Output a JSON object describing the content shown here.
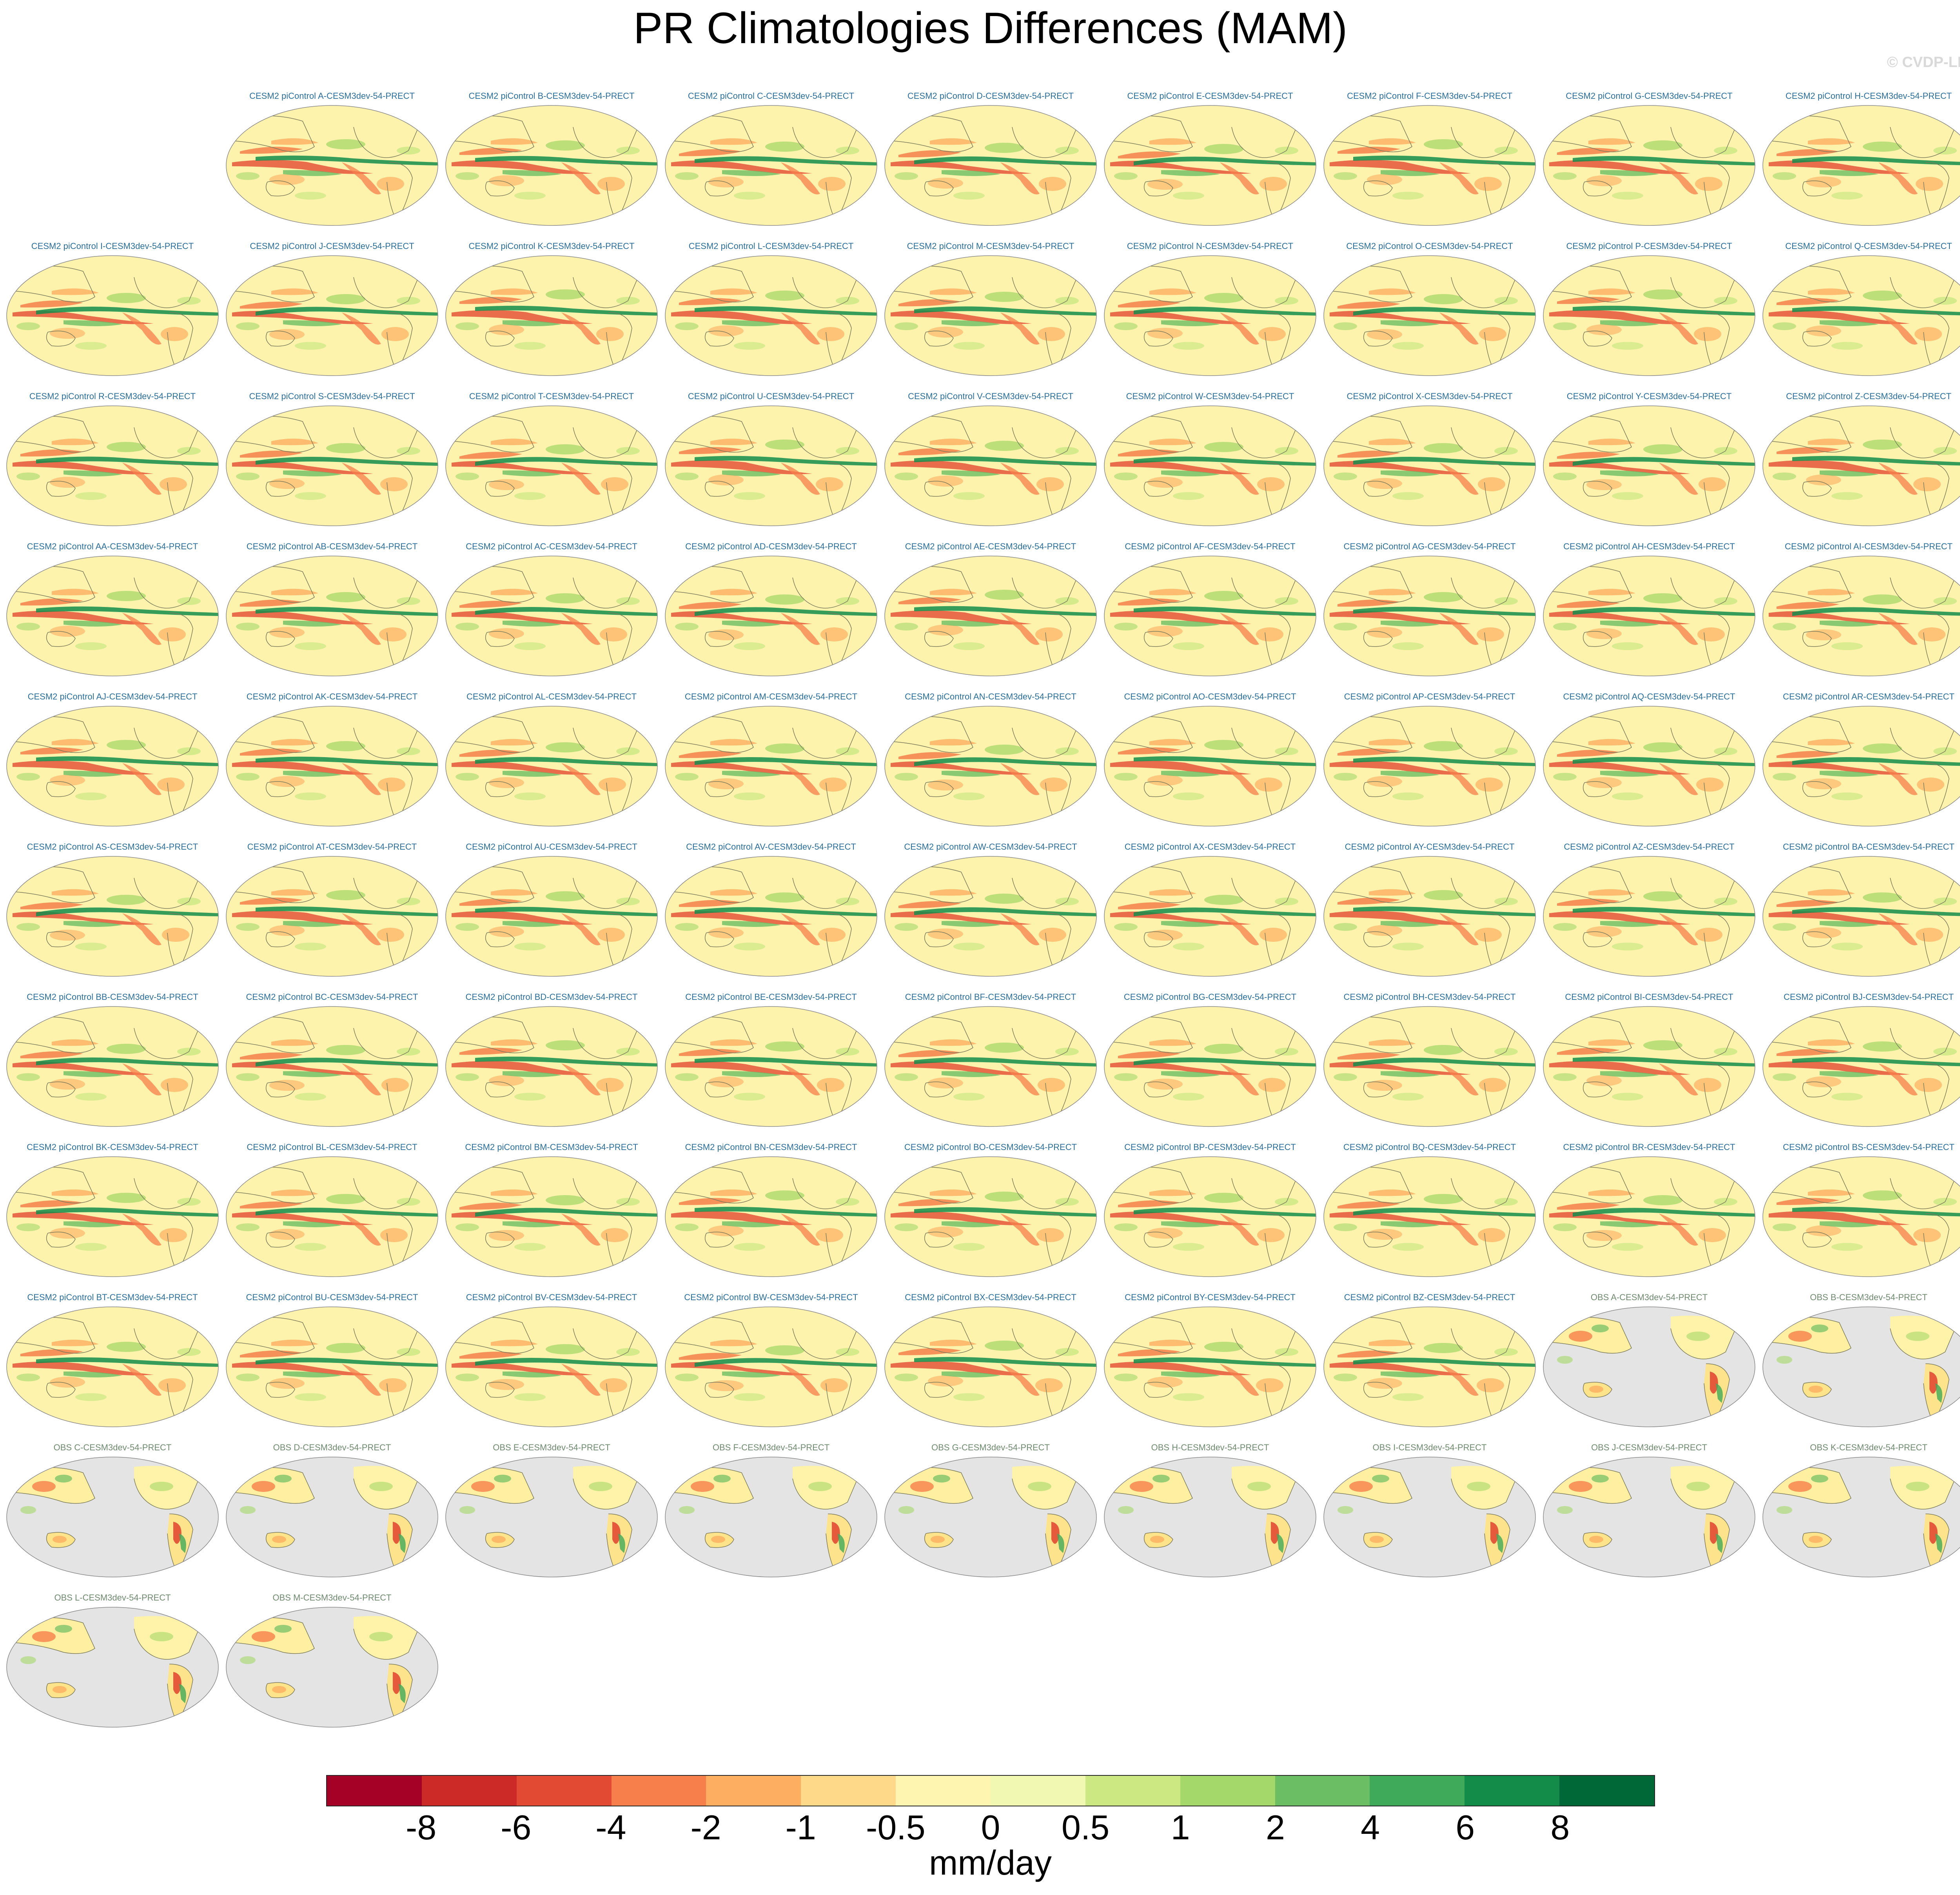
{
  "title": "PR Climatologies Differences (MAM)",
  "watermark": "© CVDP-LE",
  "colors": {
    "model_title": "#2a6f9b",
    "obs_title": "#6e8a6e",
    "ocean_obs": "#e4e4e4",
    "coast": "#7a7a5a"
  },
  "panels": [
    {
      "label": "CESM2 piControl A-CESM3dev-54-PRECT",
      "kind": "model"
    },
    {
      "label": "CESM2 piControl B-CESM3dev-54-PRECT",
      "kind": "model"
    },
    {
      "label": "CESM2 piControl C-CESM3dev-54-PRECT",
      "kind": "model"
    },
    {
      "label": "CESM2 piControl D-CESM3dev-54-PRECT",
      "kind": "model"
    },
    {
      "label": "CESM2 piControl E-CESM3dev-54-PRECT",
      "kind": "model"
    },
    {
      "label": "CESM2 piControl F-CESM3dev-54-PRECT",
      "kind": "model"
    },
    {
      "label": "CESM2 piControl G-CESM3dev-54-PRECT",
      "kind": "model"
    },
    {
      "label": "CESM2 piControl H-CESM3dev-54-PRECT",
      "kind": "model"
    },
    {
      "label": "CESM2 piControl I-CESM3dev-54-PRECT",
      "kind": "model"
    },
    {
      "label": "CESM2 piControl J-CESM3dev-54-PRECT",
      "kind": "model"
    },
    {
      "label": "CESM2 piControl K-CESM3dev-54-PRECT",
      "kind": "model"
    },
    {
      "label": "CESM2 piControl L-CESM3dev-54-PRECT",
      "kind": "model"
    },
    {
      "label": "CESM2 piControl M-CESM3dev-54-PRECT",
      "kind": "model"
    },
    {
      "label": "CESM2 piControl N-CESM3dev-54-PRECT",
      "kind": "model"
    },
    {
      "label": "CESM2 piControl O-CESM3dev-54-PRECT",
      "kind": "model"
    },
    {
      "label": "CESM2 piControl P-CESM3dev-54-PRECT",
      "kind": "model"
    },
    {
      "label": "CESM2 piControl Q-CESM3dev-54-PRECT",
      "kind": "model"
    },
    {
      "label": "CESM2 piControl R-CESM3dev-54-PRECT",
      "kind": "model"
    },
    {
      "label": "CESM2 piControl S-CESM3dev-54-PRECT",
      "kind": "model"
    },
    {
      "label": "CESM2 piControl T-CESM3dev-54-PRECT",
      "kind": "model"
    },
    {
      "label": "CESM2 piControl U-CESM3dev-54-PRECT",
      "kind": "model"
    },
    {
      "label": "CESM2 piControl V-CESM3dev-54-PRECT",
      "kind": "model"
    },
    {
      "label": "CESM2 piControl W-CESM3dev-54-PRECT",
      "kind": "model"
    },
    {
      "label": "CESM2 piControl X-CESM3dev-54-PRECT",
      "kind": "model"
    },
    {
      "label": "CESM2 piControl Y-CESM3dev-54-PRECT",
      "kind": "model"
    },
    {
      "label": "CESM2 piControl Z-CESM3dev-54-PRECT",
      "kind": "model"
    },
    {
      "label": "CESM2 piControl AA-CESM3dev-54-PRECT",
      "kind": "model"
    },
    {
      "label": "CESM2 piControl AB-CESM3dev-54-PRECT",
      "kind": "model"
    },
    {
      "label": "CESM2 piControl AC-CESM3dev-54-PRECT",
      "kind": "model"
    },
    {
      "label": "CESM2 piControl AD-CESM3dev-54-PRECT",
      "kind": "model"
    },
    {
      "label": "CESM2 piControl AE-CESM3dev-54-PRECT",
      "kind": "model"
    },
    {
      "label": "CESM2 piControl AF-CESM3dev-54-PRECT",
      "kind": "model"
    },
    {
      "label": "CESM2 piControl AG-CESM3dev-54-PRECT",
      "kind": "model"
    },
    {
      "label": "CESM2 piControl AH-CESM3dev-54-PRECT",
      "kind": "model"
    },
    {
      "label": "CESM2 piControl AI-CESM3dev-54-PRECT",
      "kind": "model"
    },
    {
      "label": "CESM2 piControl AJ-CESM3dev-54-PRECT",
      "kind": "model"
    },
    {
      "label": "CESM2 piControl AK-CESM3dev-54-PRECT",
      "kind": "model"
    },
    {
      "label": "CESM2 piControl AL-CESM3dev-54-PRECT",
      "kind": "model"
    },
    {
      "label": "CESM2 piControl AM-CESM3dev-54-PRECT",
      "kind": "model"
    },
    {
      "label": "CESM2 piControl AN-CESM3dev-54-PRECT",
      "kind": "model"
    },
    {
      "label": "CESM2 piControl AO-CESM3dev-54-PRECT",
      "kind": "model"
    },
    {
      "label": "CESM2 piControl AP-CESM3dev-54-PRECT",
      "kind": "model"
    },
    {
      "label": "CESM2 piControl AQ-CESM3dev-54-PRECT",
      "kind": "model"
    },
    {
      "label": "CESM2 piControl AR-CESM3dev-54-PRECT",
      "kind": "model"
    },
    {
      "label": "CESM2 piControl AS-CESM3dev-54-PRECT",
      "kind": "model"
    },
    {
      "label": "CESM2 piControl AT-CESM3dev-54-PRECT",
      "kind": "model"
    },
    {
      "label": "CESM2 piControl AU-CESM3dev-54-PRECT",
      "kind": "model"
    },
    {
      "label": "CESM2 piControl AV-CESM3dev-54-PRECT",
      "kind": "model"
    },
    {
      "label": "CESM2 piControl AW-CESM3dev-54-PRECT",
      "kind": "model"
    },
    {
      "label": "CESM2 piControl AX-CESM3dev-54-PRECT",
      "kind": "model"
    },
    {
      "label": "CESM2 piControl AY-CESM3dev-54-PRECT",
      "kind": "model"
    },
    {
      "label": "CESM2 piControl AZ-CESM3dev-54-PRECT",
      "kind": "model"
    },
    {
      "label": "CESM2 piControl BA-CESM3dev-54-PRECT",
      "kind": "model"
    },
    {
      "label": "CESM2 piControl BB-CESM3dev-54-PRECT",
      "kind": "model"
    },
    {
      "label": "CESM2 piControl BC-CESM3dev-54-PRECT",
      "kind": "model"
    },
    {
      "label": "CESM2 piControl BD-CESM3dev-54-PRECT",
      "kind": "model"
    },
    {
      "label": "CESM2 piControl BE-CESM3dev-54-PRECT",
      "kind": "model"
    },
    {
      "label": "CESM2 piControl BF-CESM3dev-54-PRECT",
      "kind": "model"
    },
    {
      "label": "CESM2 piControl BG-CESM3dev-54-PRECT",
      "kind": "model"
    },
    {
      "label": "CESM2 piControl BH-CESM3dev-54-PRECT",
      "kind": "model"
    },
    {
      "label": "CESM2 piControl BI-CESM3dev-54-PRECT",
      "kind": "model"
    },
    {
      "label": "CESM2 piControl BJ-CESM3dev-54-PRECT",
      "kind": "model"
    },
    {
      "label": "CESM2 piControl BK-CESM3dev-54-PRECT",
      "kind": "model"
    },
    {
      "label": "CESM2 piControl BL-CESM3dev-54-PRECT",
      "kind": "model"
    },
    {
      "label": "CESM2 piControl BM-CESM3dev-54-PRECT",
      "kind": "model"
    },
    {
      "label": "CESM2 piControl BN-CESM3dev-54-PRECT",
      "kind": "model"
    },
    {
      "label": "CESM2 piControl BO-CESM3dev-54-PRECT",
      "kind": "model"
    },
    {
      "label": "CESM2 piControl BP-CESM3dev-54-PRECT",
      "kind": "model"
    },
    {
      "label": "CESM2 piControl BQ-CESM3dev-54-PRECT",
      "kind": "model"
    },
    {
      "label": "CESM2 piControl BR-CESM3dev-54-PRECT",
      "kind": "model"
    },
    {
      "label": "CESM2 piControl BS-CESM3dev-54-PRECT",
      "kind": "model"
    },
    {
      "label": "CESM2 piControl BT-CESM3dev-54-PRECT",
      "kind": "model"
    },
    {
      "label": "CESM2 piControl BU-CESM3dev-54-PRECT",
      "kind": "model"
    },
    {
      "label": "CESM2 piControl BV-CESM3dev-54-PRECT",
      "kind": "model"
    },
    {
      "label": "CESM2 piControl BW-CESM3dev-54-PRECT",
      "kind": "model"
    },
    {
      "label": "CESM2 piControl BX-CESM3dev-54-PRECT",
      "kind": "model"
    },
    {
      "label": "CESM2 piControl BY-CESM3dev-54-PRECT",
      "kind": "model"
    },
    {
      "label": "CESM2 piControl BZ-CESM3dev-54-PRECT",
      "kind": "model"
    },
    {
      "label": "OBS A-CESM3dev-54-PRECT",
      "kind": "obs"
    },
    {
      "label": "OBS B-CESM3dev-54-PRECT",
      "kind": "obs"
    },
    {
      "label": "OBS C-CESM3dev-54-PRECT",
      "kind": "obs"
    },
    {
      "label": "OBS D-CESM3dev-54-PRECT",
      "kind": "obs"
    },
    {
      "label": "OBS E-CESM3dev-54-PRECT",
      "kind": "obs"
    },
    {
      "label": "OBS F-CESM3dev-54-PRECT",
      "kind": "obs"
    },
    {
      "label": "OBS G-CESM3dev-54-PRECT",
      "kind": "obs"
    },
    {
      "label": "OBS H-CESM3dev-54-PRECT",
      "kind": "obs"
    },
    {
      "label": "OBS I-CESM3dev-54-PRECT",
      "kind": "obs"
    },
    {
      "label": "OBS J-CESM3dev-54-PRECT",
      "kind": "obs"
    },
    {
      "label": "OBS K-CESM3dev-54-PRECT",
      "kind": "obs"
    },
    {
      "label": "OBS L-CESM3dev-54-PRECT",
      "kind": "obs"
    },
    {
      "label": "OBS M-CESM3dev-54-PRECT",
      "kind": "obs"
    }
  ],
  "colorbar": {
    "colors": [
      "#a50026",
      "#cc2a27",
      "#e34a33",
      "#f67f4b",
      "#fdae61",
      "#fed98a",
      "#fef5b0",
      "#f1f8b2",
      "#cbe883",
      "#a5d86a",
      "#6cbe64",
      "#3faa59",
      "#138c4a",
      "#006837"
    ],
    "labels": [
      "-8",
      "-6",
      "-4",
      "-2",
      "-1",
      "-0.5",
      "0",
      "0.5",
      "1",
      "2",
      "4",
      "6",
      "8"
    ],
    "units": "mm/day"
  }
}
